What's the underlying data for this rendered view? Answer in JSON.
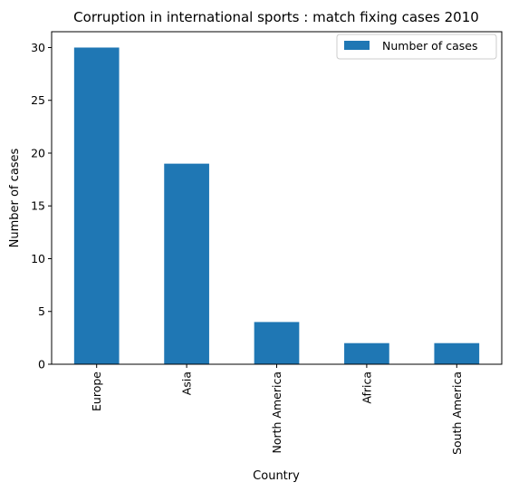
{
  "chart_data": {
    "type": "bar",
    "title": "Corruption in international sports : match fixing cases 2010",
    "xlabel": "Country",
    "ylabel": "Number of cases",
    "categories": [
      "Europe",
      "Asia",
      "North America",
      "Africa",
      "South America"
    ],
    "series": [
      {
        "name": "Number of cases",
        "values": [
          30,
          19,
          4,
          2,
          2
        ],
        "color": "#1f77b4"
      }
    ],
    "ylim": [
      0,
      31.5
    ],
    "yticks": [
      0,
      5,
      10,
      15,
      20,
      25,
      30
    ],
    "grid": false,
    "legend": "top-right"
  }
}
